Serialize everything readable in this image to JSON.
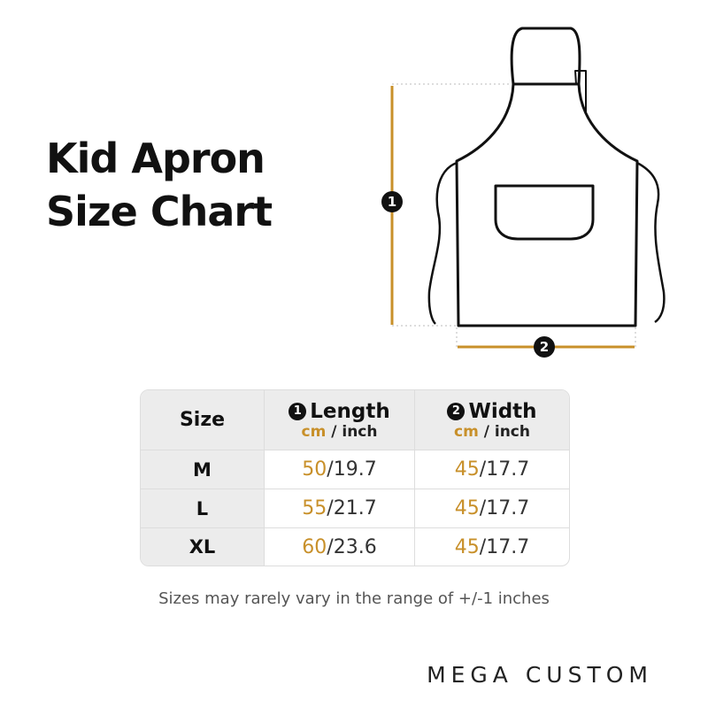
{
  "title": [
    "Kid Apron",
    "Size Chart"
  ],
  "markers": [
    "1",
    "2"
  ],
  "table": {
    "header": {
      "size": "Size",
      "length": "Length",
      "width": "Width",
      "unit_cm": "cm",
      "unit_inch": "/ inch"
    },
    "separator": "/",
    "rows": [
      {
        "size": "M",
        "length": {
          "cm": 50,
          "inch": 19.7
        },
        "width": {
          "cm": 45,
          "inch": 17.7
        }
      },
      {
        "size": "L",
        "length": {
          "cm": 55,
          "inch": 21.7
        },
        "width": {
          "cm": 45,
          "inch": 17.7
        }
      },
      {
        "size": "XL",
        "length": {
          "cm": 60,
          "inch": 23.6
        },
        "width": {
          "cm": 45,
          "inch": 17.7
        }
      }
    ]
  },
  "note": "Sizes may rarely vary in the range of +/-1 inches",
  "brand": "MEGA CUSTOM"
}
